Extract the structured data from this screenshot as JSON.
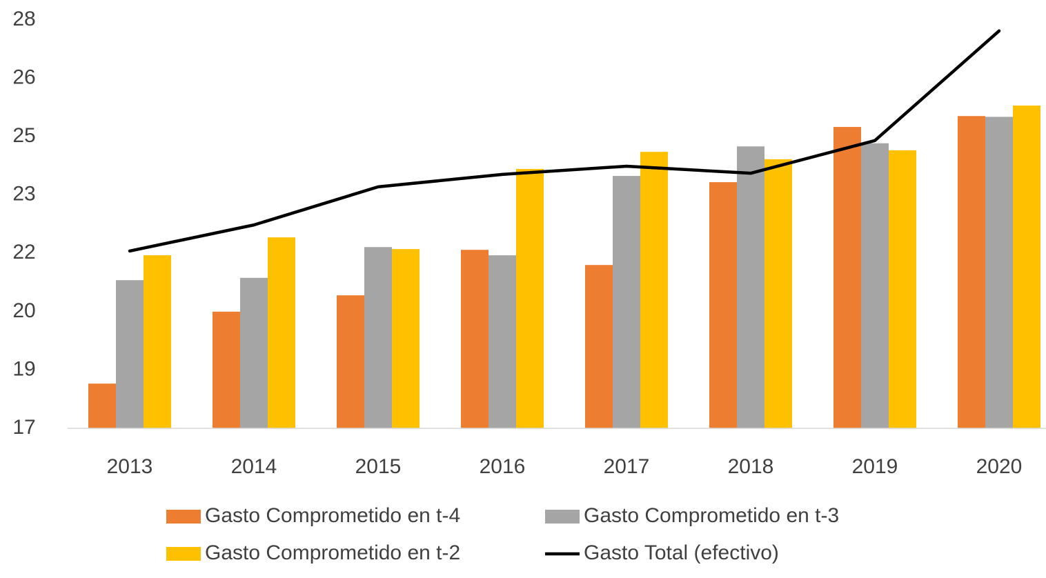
{
  "chart_data": {
    "type": "bar",
    "categories": [
      "2013",
      "2014",
      "2015",
      "2016",
      "2017",
      "2018",
      "2019",
      "2020"
    ],
    "series": [
      {
        "name": "Gasto Comprometido en t-4",
        "type": "bar",
        "color": "#ED7D31",
        "values": [
          18.15,
          20.0,
          20.42,
          21.59,
          21.2,
          23.33,
          24.75,
          25.03
        ]
      },
      {
        "name": "Gasto Comprometido en t-3",
        "type": "bar",
        "color": "#A5A5A5",
        "values": [
          20.81,
          20.87,
          21.66,
          21.45,
          23.49,
          24.25,
          24.33,
          25.01
        ]
      },
      {
        "name": "Gasto Comprometido en t-2",
        "type": "bar",
        "color": "#FFC000",
        "values": [
          21.45,
          21.91,
          21.61,
          23.67,
          24.11,
          23.92,
          24.15,
          25.3
        ]
      },
      {
        "name": "Gasto Total (efectivo)",
        "type": "line",
        "color": "#000000",
        "values": [
          21.56,
          22.23,
          23.21,
          23.53,
          23.74,
          23.56,
          24.4,
          27.22
        ]
      }
    ],
    "ylim": [
      17,
      27.5
    ],
    "yticks": [
      17,
      {
        "value": 18.5,
        "label": "19"
      },
      20,
      {
        "value": 21.5,
        "label": "22"
      },
      23,
      {
        "value": 24.5,
        "label": "25"
      },
      26,
      {
        "value": 27.5,
        "label": "28"
      }
    ],
    "grid": false,
    "legend": "bottom"
  }
}
